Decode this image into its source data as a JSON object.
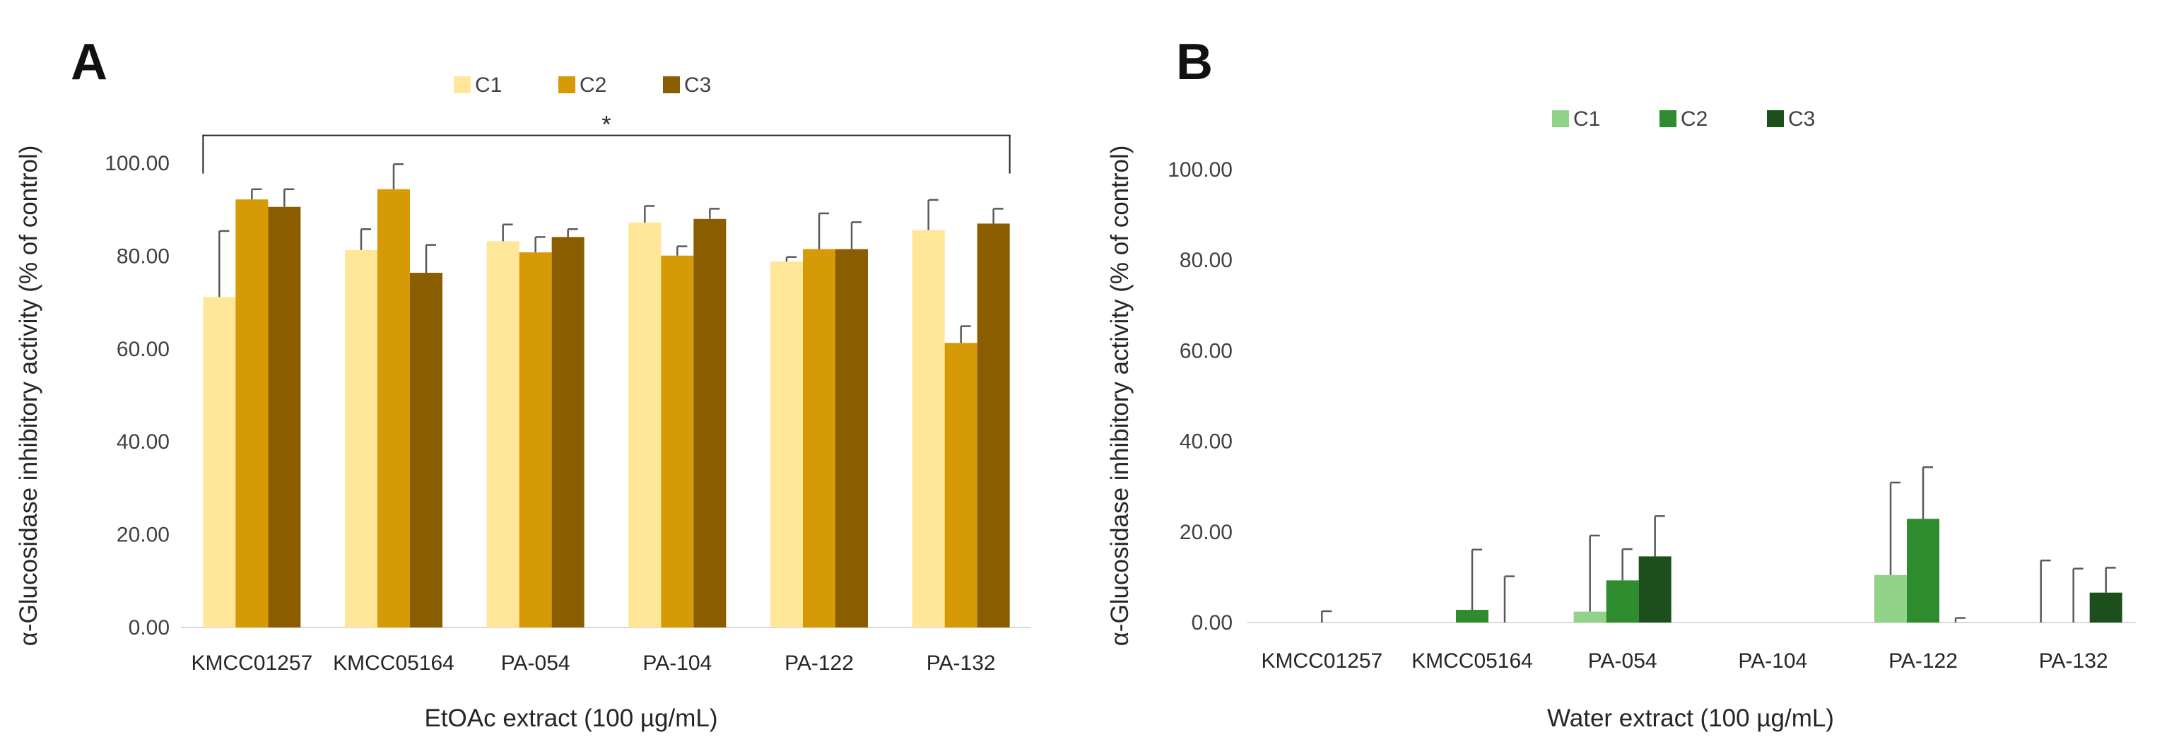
{
  "chart_data": [
    {
      "panel": "A",
      "type": "bar",
      "xlabel": "EtOAc extract (100 µg/mL)",
      "ylabel": "α-Glucosidase inhibitory activity (% of control)",
      "ylim": [
        0,
        100
      ],
      "yticks": [
        "0.00",
        "20.00",
        "40.00",
        "60.00",
        "80.00",
        "100.00"
      ],
      "grid": false,
      "legend_position": "top",
      "categories": [
        "KMCC01257",
        "KMCC05164",
        "PA-054",
        "PA-104",
        "PA-122",
        "PA-132"
      ],
      "series": [
        {
          "name": "C1",
          "color": "#FFE699",
          "values": [
            71.2,
            81.3,
            83.2,
            87.2,
            78.8,
            85.6
          ],
          "errors": [
            14.2,
            4.5,
            3.6,
            3.6,
            1.0,
            6.5
          ]
        },
        {
          "name": "C2",
          "color": "#D59A06",
          "values": [
            92.2,
            94.4,
            80.8,
            80.1,
            81.5,
            61.3
          ],
          "errors": [
            2.2,
            5.4,
            3.3,
            2.0,
            7.7,
            3.6
          ]
        },
        {
          "name": "C3",
          "color": "#8A5D00",
          "values": [
            90.6,
            76.4,
            84.1,
            88.0,
            81.5,
            87.0
          ],
          "errors": [
            3.8,
            6.0,
            1.7,
            2.2,
            5.8,
            3.2
          ]
        }
      ],
      "annotation": {
        "text": "*",
        "from_category": "KMCC01257",
        "to_category": "PA-132",
        "level": 106
      }
    },
    {
      "panel": "B",
      "type": "bar",
      "xlabel": "Water extract (100 µg/mL)",
      "ylabel": "α-Glucosidase inhibitory activity (% of control)",
      "ylim": [
        0,
        100
      ],
      "yticks": [
        "0.00",
        "20.00",
        "40.00",
        "60.00",
        "80.00",
        "100.00"
      ],
      "grid": false,
      "legend_position": "top",
      "categories": [
        "KMCC01257",
        "KMCC05164",
        "PA-054",
        "PA-104",
        "PA-122",
        "PA-132"
      ],
      "series": [
        {
          "name": "C1",
          "color": "#92D38A",
          "values": [
            0,
            0,
            2.4,
            0,
            10.5,
            0
          ],
          "errors": [
            0,
            0,
            16.8,
            0,
            20.4,
            13.7
          ]
        },
        {
          "name": "C2",
          "color": "#2E8B2E",
          "values": [
            0,
            2.8,
            9.3,
            0,
            22.9,
            0
          ],
          "errors": [
            2.5,
            13.3,
            6.9,
            0,
            11.4,
            11.9
          ]
        },
        {
          "name": "C3",
          "color": "#1C4F1C",
          "values": [
            0,
            0,
            14.6,
            0,
            0,
            6.6
          ],
          "errors": [
            0,
            10.2,
            8.9,
            0,
            1.0,
            5.5
          ]
        }
      ]
    }
  ]
}
